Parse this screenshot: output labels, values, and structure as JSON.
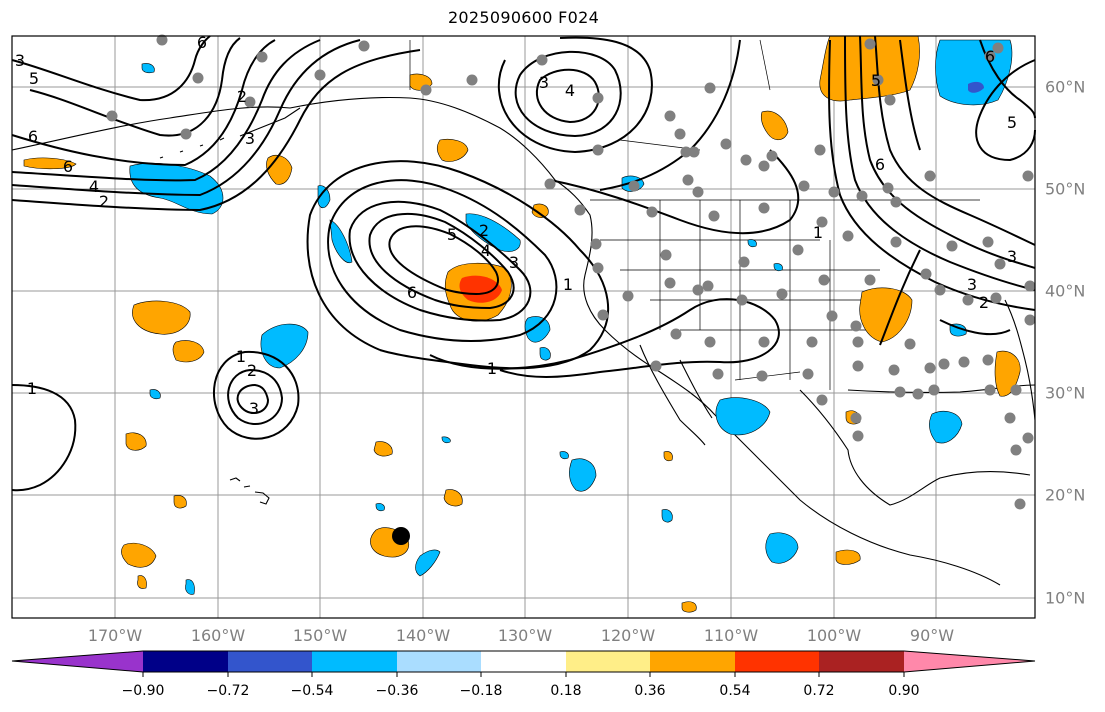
{
  "title": "2025090600 F024",
  "longitude_labels": [
    "170°W",
    "160°W",
    "150°W",
    "140°W",
    "130°W",
    "120°W",
    "110°W",
    "100°W",
    "90°W"
  ],
  "latitude_labels": [
    "60°N",
    "50°N",
    "40°N",
    "30°N",
    "20°N",
    "10°N"
  ],
  "contour_labels": [
    "3",
    "5",
    "6",
    "6",
    "4",
    "2",
    "3",
    "3",
    "4",
    "1",
    "1",
    "2",
    "3",
    "6",
    "5",
    "4",
    "3",
    "2",
    "1",
    "2",
    "3",
    "5",
    "6",
    "6",
    "1",
    "3",
    "2",
    "1",
    "5",
    "6"
  ],
  "colorbar": {
    "tick_labels": [
      "−0.90",
      "−0.72",
      "−0.54",
      "−0.36",
      "−0.18",
      "0.18",
      "0.36",
      "0.54",
      "0.72",
      "0.90"
    ],
    "colors": [
      "#9933cc",
      "#000088",
      "#3355cc",
      "#00bbff",
      "#aaddff",
      "#ffffff",
      "#ffee88",
      "#ffa500",
      "#ff3300",
      "#aa2222",
      "#ff88aa"
    ]
  },
  "colors": {
    "positive_fill": "#ffa500",
    "strong_positive_fill": "#ff3300",
    "negative_fill": "#00bbff",
    "strong_negative_fill": "#3355cc",
    "station_dot": "#808080",
    "grid": "#999999",
    "contour": "#000000"
  }
}
